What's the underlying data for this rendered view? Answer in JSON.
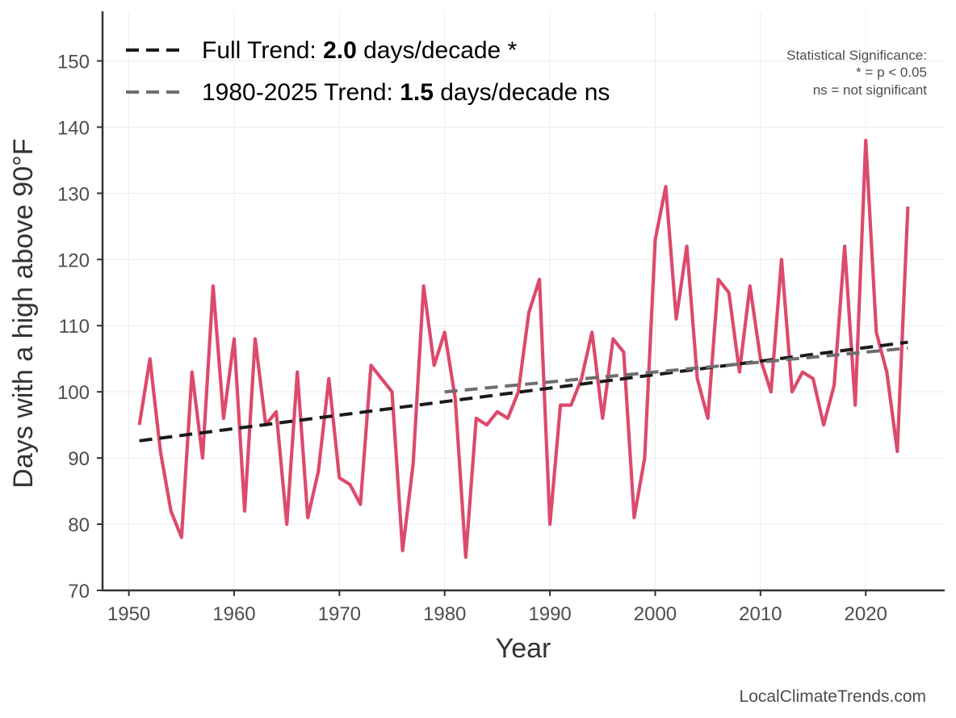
{
  "chart_data": {
    "type": "line",
    "xlabel": "Year",
    "ylabel": "Days with a high above 90°F",
    "xlim": [
      1947.5,
      2027.5
    ],
    "ylim": [
      70,
      157.5
    ],
    "xticks": [
      1950,
      1960,
      1970,
      1980,
      1990,
      2000,
      2010,
      2020
    ],
    "yticks": [
      70,
      80,
      90,
      100,
      110,
      120,
      130,
      140,
      150
    ],
    "grid": true,
    "legend_position": "top-left",
    "series": [
      {
        "color": "#dc4a6c",
        "x": [
          1951,
          1952,
          1953,
          1954,
          1955,
          1956,
          1957,
          1958,
          1959,
          1960,
          1961,
          1962,
          1963,
          1964,
          1965,
          1966,
          1967,
          1968,
          1969,
          1970,
          1971,
          1972,
          1973,
          1974,
          1975,
          1976,
          1977,
          1978,
          1979,
          1980,
          1981,
          1982,
          1983,
          1984,
          1985,
          1986,
          1987,
          1988,
          1989,
          1990,
          1991,
          1992,
          1993,
          1994,
          1995,
          1996,
          1997,
          1998,
          1999,
          2000,
          2001,
          2002,
          2003,
          2004,
          2005,
          2006,
          2007,
          2008,
          2009,
          2010,
          2011,
          2012,
          2013,
          2014,
          2015,
          2016,
          2017,
          2018,
          2019,
          2020,
          2021,
          2022,
          2023,
          2024
        ],
        "values": [
          95,
          105,
          91,
          82,
          78,
          103,
          90,
          116,
          96,
          108,
          82,
          108,
          95,
          97,
          80,
          103,
          81,
          88,
          102,
          87,
          86,
          83,
          104,
          102,
          100,
          76,
          89,
          116,
          104,
          109,
          99,
          75,
          96,
          95,
          97,
          96,
          100,
          112,
          117,
          80,
          98,
          98,
          102,
          109,
          96,
          108,
          106,
          81,
          90,
          123,
          131,
          111,
          122,
          102,
          96,
          117,
          115,
          103,
          116,
          105,
          100,
          120,
          100,
          103,
          102,
          95,
          101,
          122,
          98,
          138,
          109,
          103,
          91,
          128
        ]
      },
      {
        "name": "Full Trend",
        "style": "dashed",
        "color": "#1a1a1a",
        "x": [
          1951,
          2024
        ],
        "values": [
          92.6,
          107.5
        ]
      },
      {
        "name": "1980-2025 Trend",
        "style": "dashed",
        "color": "#6e6e6e",
        "x": [
          1980,
          2024
        ],
        "values": [
          100.0,
          106.6
        ]
      }
    ],
    "legend": [
      {
        "prefix": "Full Trend: ",
        "value": "2.0",
        "suffix": " days/decade *",
        "color": "#1a1a1a"
      },
      {
        "prefix": "1980-2025 Trend: ",
        "value": "1.5",
        "suffix": " days/decade ns",
        "color": "#6e6e6e"
      }
    ],
    "annotation": {
      "lines": [
        "Statistical Significance:",
        "* = p < 0.05",
        "ns = not significant"
      ]
    },
    "credit": "LocalClimateTrends.com"
  }
}
